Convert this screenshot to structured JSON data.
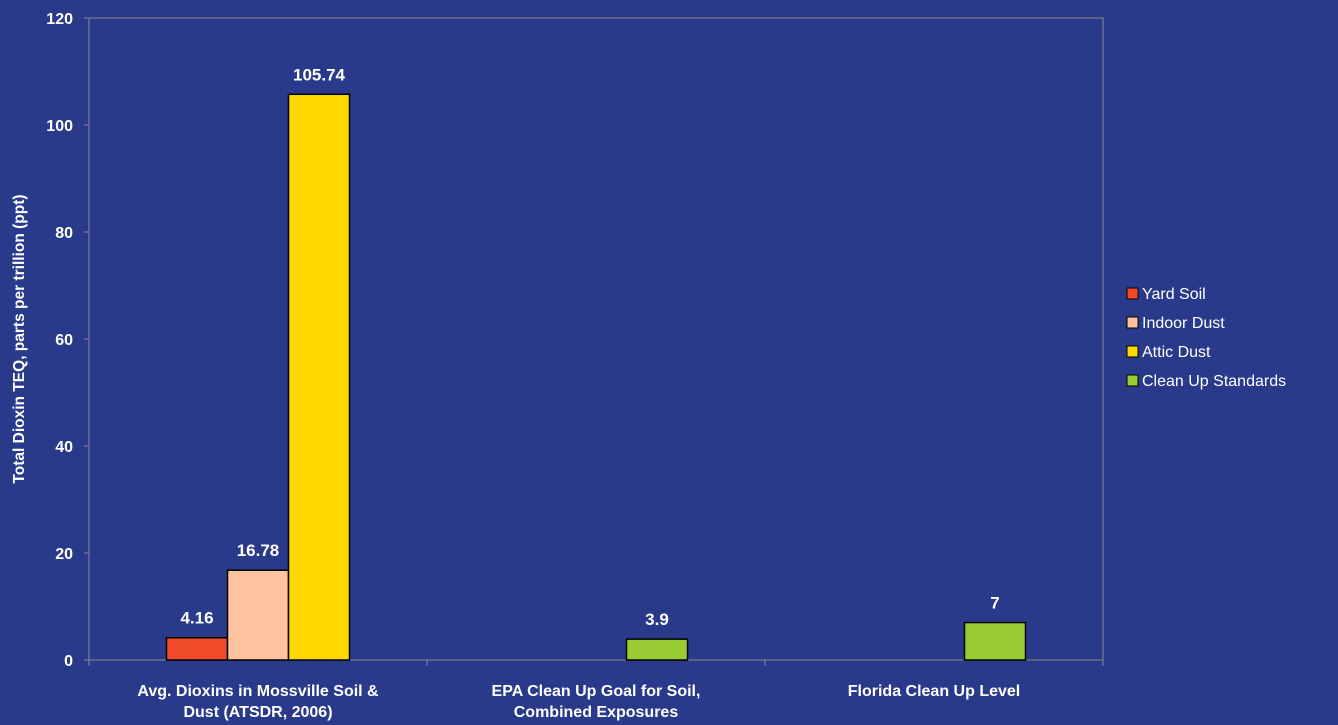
{
  "chart_data": {
    "type": "bar",
    "ylabel": "Total Dioxin TEQ, parts per trillion (ppt)",
    "ylim": [
      0,
      120
    ],
    "yticks": [
      0,
      20,
      40,
      60,
      80,
      100,
      120
    ],
    "categories": [
      [
        "Avg. Dioxins in Mossville Soil &",
        "Dust (ATSDR, 2006)"
      ],
      [
        "EPA Clean Up Goal for Soil,",
        "Combined Exposures"
      ],
      [
        "Florida Clean Up Level"
      ]
    ],
    "series": [
      {
        "name": "Yard Soil",
        "color": "#f04a2a",
        "values": [
          4.16,
          null,
          null
        ],
        "labels": [
          "4.16",
          null,
          null
        ]
      },
      {
        "name": "Indoor Dust",
        "color": "#ffc29e",
        "values": [
          16.78,
          null,
          null
        ],
        "labels": [
          "16.78",
          null,
          null
        ]
      },
      {
        "name": "Attic Dust",
        "color": "#ffd800",
        "values": [
          105.74,
          null,
          null
        ],
        "labels": [
          "105.74",
          null,
          null
        ]
      },
      {
        "name": "Clean Up Standards",
        "color": "#99cc33",
        "values": [
          null,
          3.9,
          7
        ],
        "labels": [
          null,
          "3.9",
          "7"
        ]
      }
    ],
    "grid": false,
    "legend_position": "right"
  }
}
